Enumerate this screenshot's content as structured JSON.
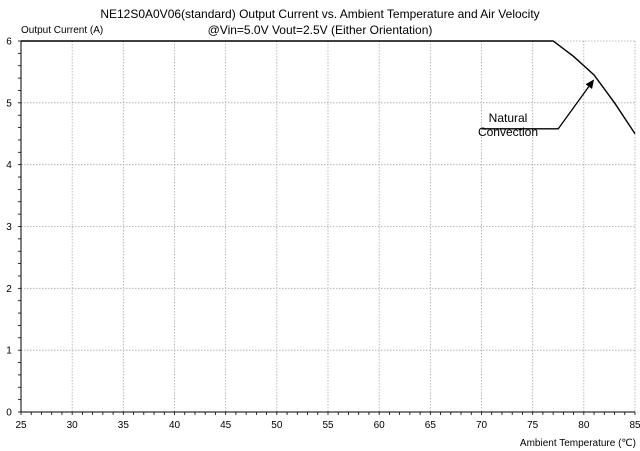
{
  "chart_data": {
    "type": "line",
    "title": "NE12S0A0V06(standard)  Output Current vs. Ambient Temperature and Air Velocity",
    "subtitle": "@Vin=5.0V Vout=2.5V (Either Orientation)",
    "xlabel": "Ambient Temperature (℃)",
    "ylabel": "Output Current (A)",
    "xlim": [
      25,
      85
    ],
    "ylim": [
      0,
      6
    ],
    "x_ticks": [
      25,
      30,
      35,
      40,
      45,
      50,
      55,
      60,
      65,
      70,
      75,
      80,
      85
    ],
    "y_ticks": [
      0,
      1,
      2,
      3,
      4,
      5,
      6
    ],
    "grid": true,
    "series": [
      {
        "name": "",
        "points": [
          [
            25,
            6.0
          ],
          [
            77,
            6.0
          ],
          [
            79,
            5.75
          ],
          [
            81,
            5.45
          ],
          [
            83,
            5.0
          ],
          [
            85,
            4.5
          ]
        ]
      }
    ],
    "annotation": {
      "text_line1": "Natural",
      "text_line2": "Convection",
      "leader_start": [
        70,
        4.58
      ],
      "elbow": [
        77.5,
        4.58
      ],
      "arrow_tip": [
        81,
        5.38
      ]
    }
  }
}
